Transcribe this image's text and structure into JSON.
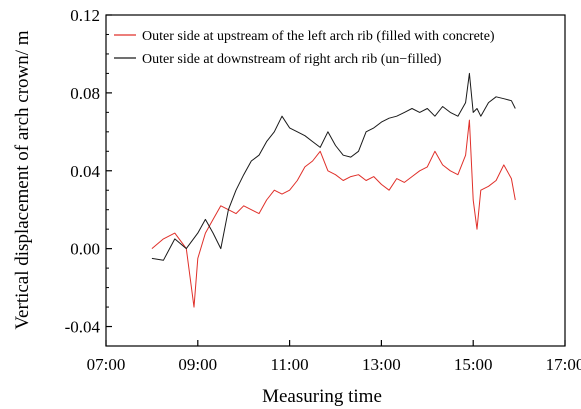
{
  "chart_data": {
    "type": "line",
    "title": "",
    "xlabel": "Measuring time",
    "ylabel": "Vertical displacement of arch crown/ m",
    "xlim": [
      "07:00",
      "17:00"
    ],
    "ylim": [
      -0.05,
      0.12
    ],
    "x_ticks": [
      "07:00",
      "09:00",
      "11:00",
      "13:00",
      "15:00",
      "17:00"
    ],
    "y_ticks": [
      "-0.04",
      "0.00",
      "0.04",
      "0.08",
      "0.12"
    ],
    "grid": false,
    "legend_position": "top-left",
    "series": [
      {
        "name": "Outer side at upstream of the left arch rib (filled with concrete)",
        "color": "#e0302a",
        "x": [
          "08:00",
          "08:15",
          "08:30",
          "08:45",
          "08:55",
          "09:00",
          "09:10",
          "09:20",
          "09:30",
          "09:40",
          "09:50",
          "10:00",
          "10:10",
          "10:20",
          "10:30",
          "10:40",
          "10:50",
          "11:00",
          "11:10",
          "11:20",
          "11:30",
          "11:40",
          "11:50",
          "12:00",
          "12:10",
          "12:20",
          "12:30",
          "12:40",
          "12:50",
          "13:00",
          "13:10",
          "13:20",
          "13:30",
          "13:40",
          "13:50",
          "14:00",
          "14:10",
          "14:20",
          "14:30",
          "14:40",
          "14:50",
          "14:55",
          "15:00",
          "15:05",
          "15:10",
          "15:20",
          "15:30",
          "15:40",
          "15:50",
          "15:55"
        ],
        "values": [
          0.0,
          0.005,
          0.008,
          0.0,
          -0.03,
          -0.005,
          0.008,
          0.015,
          0.022,
          0.02,
          0.018,
          0.022,
          0.02,
          0.018,
          0.025,
          0.03,
          0.028,
          0.03,
          0.035,
          0.042,
          0.045,
          0.05,
          0.04,
          0.038,
          0.035,
          0.037,
          0.038,
          0.035,
          0.037,
          0.033,
          0.03,
          0.036,
          0.034,
          0.037,
          0.04,
          0.042,
          0.05,
          0.043,
          0.04,
          0.038,
          0.048,
          0.066,
          0.025,
          0.01,
          0.03,
          0.032,
          0.035,
          0.043,
          0.036,
          0.025
        ]
      },
      {
        "name": "Outer side at downstream of right arch rib (un−filled)",
        "color": "#1a1a1a",
        "x": [
          "08:00",
          "08:15",
          "08:30",
          "08:45",
          "09:00",
          "09:10",
          "09:20",
          "09:30",
          "09:40",
          "09:50",
          "10:00",
          "10:10",
          "10:20",
          "10:30",
          "10:40",
          "10:50",
          "11:00",
          "11:10",
          "11:20",
          "11:30",
          "11:40",
          "11:50",
          "12:00",
          "12:10",
          "12:20",
          "12:30",
          "12:40",
          "12:50",
          "13:00",
          "13:10",
          "13:20",
          "13:30",
          "13:40",
          "13:50",
          "14:00",
          "14:10",
          "14:20",
          "14:30",
          "14:40",
          "14:50",
          "14:55",
          "15:00",
          "15:05",
          "15:10",
          "15:20",
          "15:30",
          "15:40",
          "15:50",
          "15:55"
        ],
        "values": [
          -0.005,
          -0.006,
          0.005,
          0.0,
          0.008,
          0.015,
          0.008,
          0.0,
          0.02,
          0.03,
          0.038,
          0.045,
          0.048,
          0.055,
          0.06,
          0.068,
          0.062,
          0.06,
          0.058,
          0.055,
          0.052,
          0.06,
          0.053,
          0.048,
          0.047,
          0.05,
          0.06,
          0.062,
          0.065,
          0.067,
          0.068,
          0.07,
          0.072,
          0.07,
          0.072,
          0.068,
          0.073,
          0.07,
          0.068,
          0.075,
          0.09,
          0.07,
          0.072,
          0.068,
          0.075,
          0.078,
          0.077,
          0.076,
          0.072
        ]
      }
    ]
  }
}
